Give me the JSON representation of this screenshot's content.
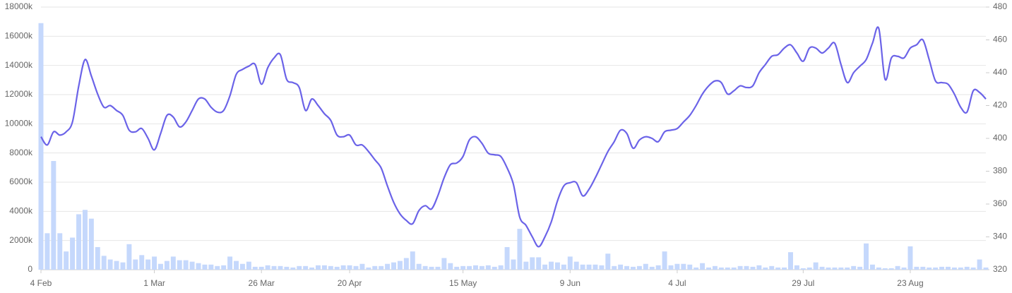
{
  "chart_data": {
    "type": "combo",
    "categories": [
      "4 Feb",
      null,
      null,
      null,
      null,
      null,
      null,
      null,
      null,
      null,
      null,
      null,
      null,
      null,
      null,
      null,
      null,
      null,
      "1 Mar",
      null,
      null,
      null,
      null,
      null,
      null,
      null,
      null,
      null,
      null,
      null,
      null,
      null,
      null,
      null,
      null,
      "26 Mar",
      null,
      null,
      null,
      null,
      null,
      null,
      null,
      null,
      null,
      null,
      null,
      null,
      null,
      "20 Apr",
      null,
      null,
      null,
      null,
      null,
      null,
      null,
      null,
      null,
      null,
      null,
      null,
      null,
      null,
      null,
      null,
      null,
      "15 May",
      null,
      null,
      null,
      null,
      null,
      null,
      null,
      null,
      null,
      null,
      null,
      null,
      null,
      null,
      null,
      null,
      "9 Jun",
      null,
      null,
      null,
      null,
      null,
      null,
      null,
      null,
      null,
      null,
      null,
      null,
      null,
      null,
      null,
      null,
      "4 Jul",
      null,
      null,
      null,
      null,
      null,
      null,
      null,
      null,
      null,
      null,
      null,
      null,
      null,
      null,
      null,
      null,
      null,
      null,
      null,
      "29 Jul",
      null,
      null,
      null,
      null,
      null,
      null,
      null,
      null,
      null,
      null,
      null,
      null,
      null,
      null,
      null,
      null,
      "23 Aug",
      null,
      null,
      null,
      null,
      null,
      null,
      null,
      null,
      null,
      null,
      null,
      null
    ],
    "series": [
      {
        "type": "bar",
        "color": "#c5d8fc",
        "values": [
          16900,
          2500,
          7450,
          2500,
          1250,
          2200,
          3800,
          4100,
          3500,
          1550,
          950,
          700,
          600,
          500,
          1750,
          700,
          1000,
          700,
          900,
          400,
          600,
          900,
          650,
          650,
          550,
          450,
          350,
          350,
          250,
          300,
          900,
          600,
          400,
          550,
          200,
          200,
          300,
          250,
          250,
          200,
          150,
          250,
          250,
          150,
          300,
          300,
          250,
          200,
          300,
          300,
          250,
          400,
          150,
          250,
          250,
          400,
          500,
          600,
          800,
          1250,
          400,
          250,
          200,
          200,
          800,
          450,
          200,
          250,
          250,
          300,
          250,
          300,
          200,
          300,
          1550,
          700,
          2800,
          550,
          850,
          850,
          350,
          550,
          500,
          350,
          900,
          550,
          350,
          350,
          350,
          300,
          1100,
          250,
          350,
          250,
          200,
          250,
          400,
          200,
          300,
          1250,
          300,
          400,
          400,
          350,
          150,
          450,
          150,
          250,
          150,
          150,
          150,
          250,
          250,
          200,
          300,
          150,
          250,
          150,
          150,
          1200,
          300,
          100,
          150,
          500,
          200,
          150,
          150,
          150,
          150,
          250,
          200,
          1800,
          350,
          150,
          100,
          100,
          250,
          150,
          1600,
          200,
          200,
          150,
          150,
          200,
          200,
          150,
          150,
          200,
          150,
          700,
          150
        ]
      },
      {
        "type": "line",
        "axis": "y2",
        "color": "#6b63e8",
        "values": [
          401,
          396,
          404,
          402,
          404,
          410,
          432,
          448,
          438,
          427,
          419,
          420,
          417,
          414,
          405,
          404,
          406,
          400,
          393,
          403,
          414,
          413,
          407,
          410,
          417,
          424,
          424,
          419,
          416,
          417,
          426,
          439,
          442,
          444,
          445,
          433,
          443,
          449,
          451,
          436,
          434,
          431,
          417,
          424,
          420,
          415,
          411,
          402,
          401,
          402,
          396,
          396,
          392,
          387,
          382,
          371,
          361,
          354,
          350,
          348,
          356,
          359,
          357,
          365,
          376,
          384,
          385,
          389,
          399,
          401,
          397,
          391,
          390,
          389,
          382,
          372,
          352,
          347,
          340,
          334,
          340,
          349,
          362,
          371,
          373,
          373,
          365,
          369,
          376,
          384,
          392,
          398,
          405,
          403,
          394,
          399,
          401,
          400,
          398,
          404,
          405,
          406,
          410,
          414,
          420,
          427,
          432,
          435,
          434,
          427,
          429,
          432,
          431,
          432,
          440,
          445,
          450,
          451,
          455,
          457,
          452,
          447,
          455,
          455,
          452,
          455,
          458,
          445,
          434,
          440,
          444,
          448,
          458,
          467,
          436,
          449,
          450,
          449,
          455,
          457,
          460,
          448,
          435,
          434,
          433,
          427,
          419,
          416,
          429,
          428,
          424
        ]
      }
    ],
    "ylim": [
      0,
      18000
    ],
    "yticks": [
      0,
      {
        "value": 2000,
        "label": "2000k"
      },
      {
        "value": 4000,
        "label": "4000k"
      },
      {
        "value": 6000,
        "label": "6000k"
      },
      {
        "value": 8000,
        "label": "8000k"
      },
      {
        "value": 10000,
        "label": "10000k"
      },
      {
        "value": 12000,
        "label": "12000k"
      },
      {
        "value": 14000,
        "label": "14000k"
      },
      {
        "value": 16000,
        "label": "16000k"
      },
      {
        "value": 18000,
        "label": "18000k"
      }
    ],
    "y2lim": [
      320,
      480
    ],
    "y2ticks": [
      320,
      340,
      360,
      380,
      400,
      420,
      440,
      460,
      480
    ],
    "grid": true
  }
}
